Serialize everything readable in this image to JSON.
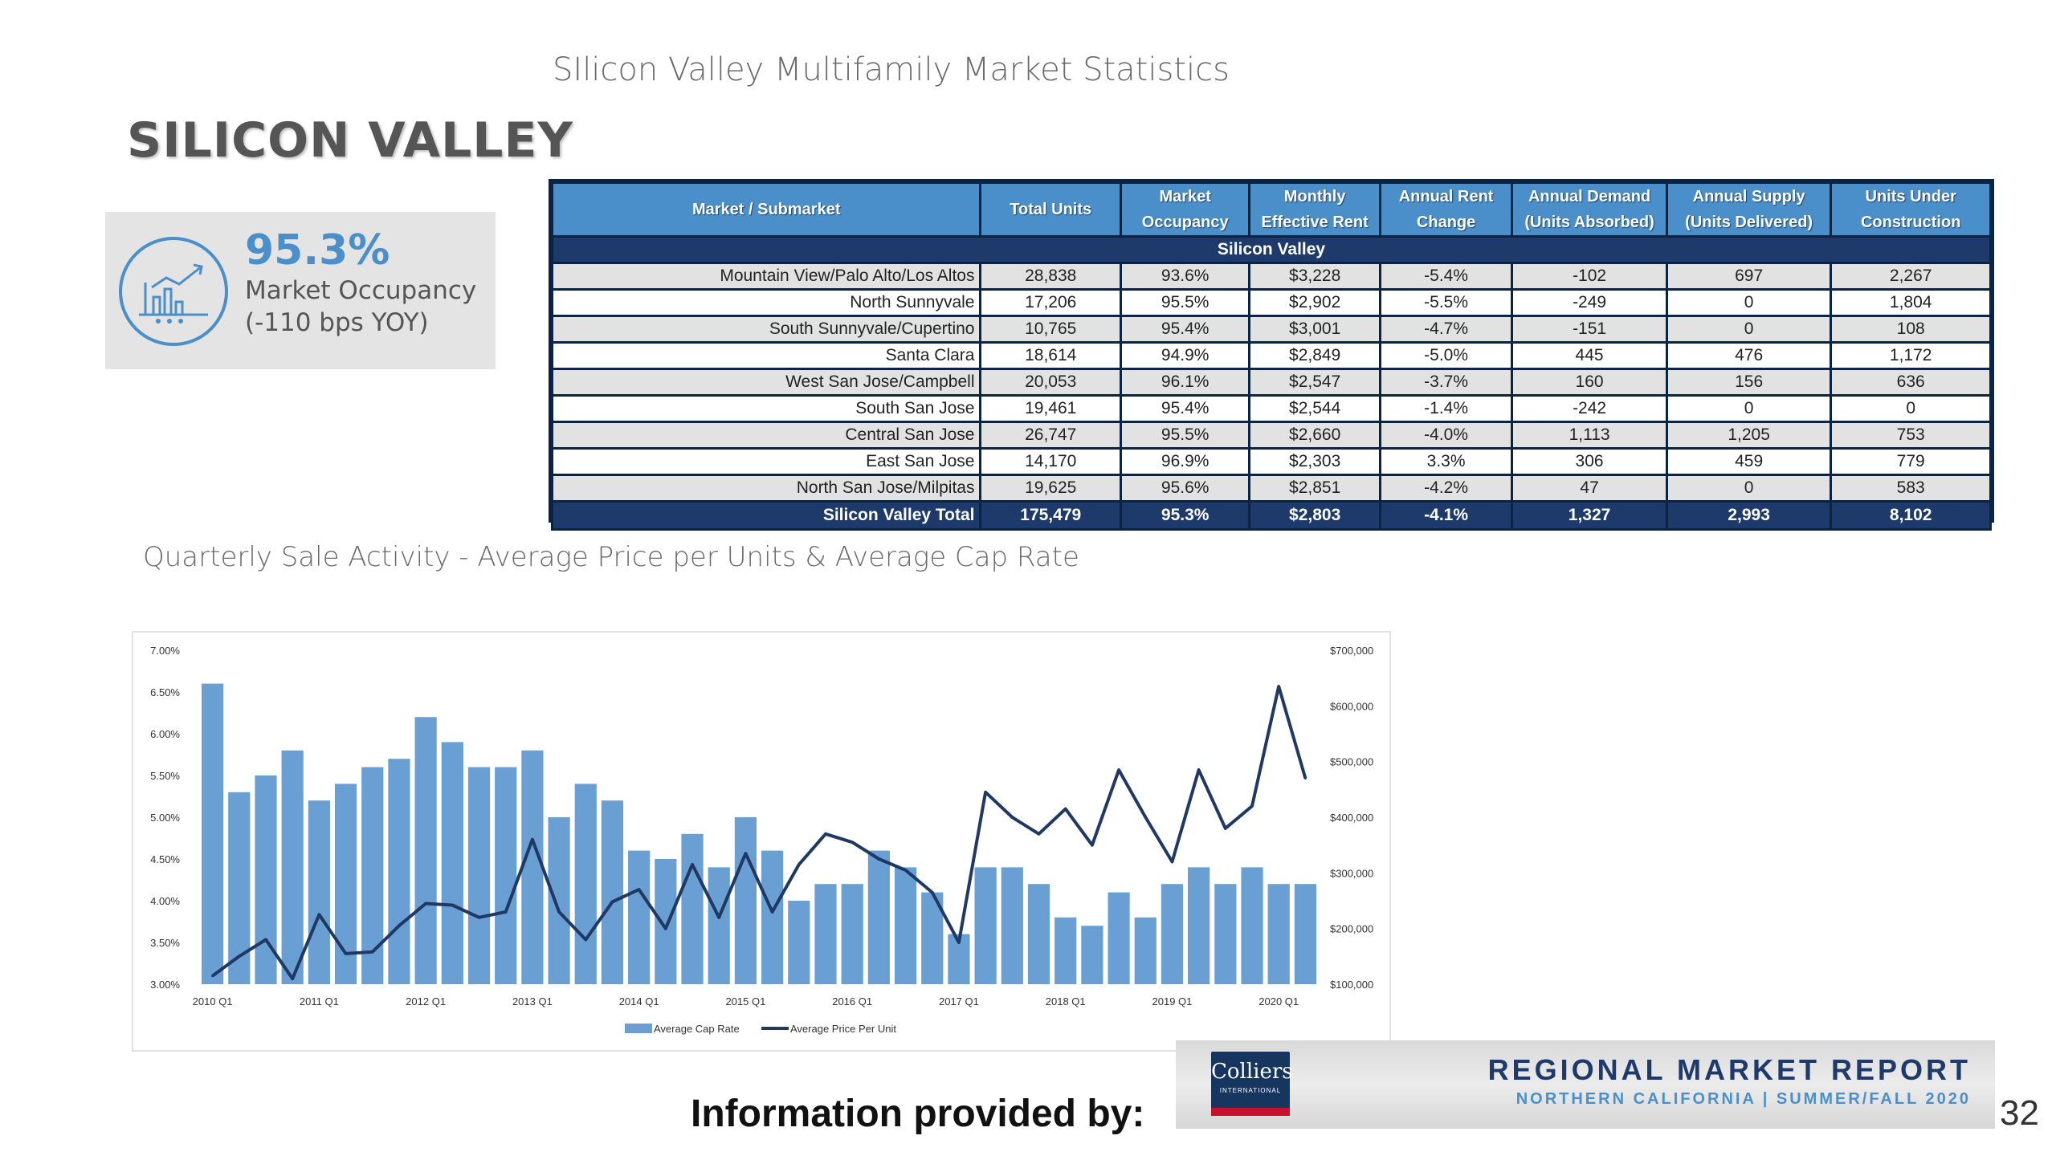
{
  "headings": {
    "stats_title": "SIlicon Valley Multifamily Market Statistics",
    "region": "SILICON VALLEY",
    "chart_title": "Quarterly Sale Activity - Average Price per Units & Average Cap Rate"
  },
  "kpi": {
    "value": "95.3%",
    "label": "Market Occupancy",
    "sub": "(-110 bps YOY)",
    "icon": "chart-analytics-icon"
  },
  "table": {
    "columns": [
      [
        "Market / Submarket"
      ],
      [
        "Total Units"
      ],
      [
        "Market",
        "Occupancy"
      ],
      [
        "Monthly",
        "Effective Rent"
      ],
      [
        "Annual Rent",
        "Change"
      ],
      [
        "Annual Demand",
        "(Units Absorbed)"
      ],
      [
        "Annual Supply",
        "(Units Delivered)"
      ],
      [
        "Units Under",
        "Construction"
      ]
    ],
    "region": "Silicon Valley",
    "rows": [
      [
        "Mountain View/Palo Alto/Los Altos",
        "28,838",
        "93.6%",
        "$3,228",
        "-5.4%",
        "-102",
        "697",
        "2,267"
      ],
      [
        "North Sunnyvale",
        "17,206",
        "95.5%",
        "$2,902",
        "-5.5%",
        "-249",
        "0",
        "1,804"
      ],
      [
        "South Sunnyvale/Cupertino",
        "10,765",
        "95.4%",
        "$3,001",
        "-4.7%",
        "-151",
        "0",
        "108"
      ],
      [
        "Santa Clara",
        "18,614",
        "94.9%",
        "$2,849",
        "-5.0%",
        "445",
        "476",
        "1,172"
      ],
      [
        "West San Jose/Campbell",
        "20,053",
        "96.1%",
        "$2,547",
        "-3.7%",
        "160",
        "156",
        "636"
      ],
      [
        "South San Jose",
        "19,461",
        "95.4%",
        "$2,544",
        "-1.4%",
        "-242",
        "0",
        "0"
      ],
      [
        "Central San Jose",
        "26,747",
        "95.5%",
        "$2,660",
        "-4.0%",
        "1,113",
        "1,205",
        "753"
      ],
      [
        "East San Jose",
        "14,170",
        "96.9%",
        "$2,303",
        "3.3%",
        "306",
        "459",
        "779"
      ],
      [
        "North San Jose/Milpitas",
        "19,625",
        "95.6%",
        "$2,851",
        "-4.2%",
        "47",
        "0",
        "583"
      ]
    ],
    "total": [
      "Silicon Valley Total",
      "175,479",
      "95.3%",
      "$2,803",
      "-4.1%",
      "1,327",
      "2,993",
      "8,102"
    ]
  },
  "chart_data": {
    "type": "bar",
    "title": "",
    "categories": [
      "2010 Q1",
      "2010 Q2",
      "2010 Q3",
      "2010 Q4",
      "2011 Q1",
      "2011 Q2",
      "2011 Q3",
      "2011 Q4",
      "2012 Q1",
      "2012 Q2",
      "2012 Q3",
      "2012 Q4",
      "2013 Q1",
      "2013 Q2",
      "2013 Q3",
      "2013 Q4",
      "2014 Q1",
      "2014 Q2",
      "2014 Q3",
      "2014 Q4",
      "2015 Q1",
      "2015 Q2",
      "2015 Q3",
      "2015 Q4",
      "2016 Q1",
      "2016 Q2",
      "2016 Q3",
      "2016 Q4",
      "2017 Q1",
      "2017 Q2",
      "2017 Q3",
      "2017 Q4",
      "2018 Q1",
      "2018 Q2",
      "2018 Q3",
      "2018 Q4",
      "2019 Q1",
      "2019 Q2",
      "2019 Q3",
      "2019 Q4",
      "2020 Q1",
      "2020 Q2"
    ],
    "x_tick_labels": [
      "2010 Q1",
      "2011 Q1",
      "2012 Q1",
      "2013 Q1",
      "2014 Q1",
      "2015 Q1",
      "2016 Q1",
      "2017 Q1",
      "2018 Q1",
      "2019 Q1",
      "2020 Q1"
    ],
    "series": [
      {
        "name": "Average Cap Rate",
        "type": "bar",
        "axis": "left",
        "color": "#6a9fd4",
        "values": [
          6.6,
          5.3,
          5.5,
          5.8,
          5.2,
          5.4,
          5.6,
          5.7,
          6.2,
          5.9,
          5.6,
          5.6,
          5.8,
          5.0,
          5.4,
          5.2,
          4.6,
          4.5,
          4.8,
          4.4,
          5.0,
          4.6,
          4.0,
          4.2,
          4.2,
          4.6,
          4.4,
          4.1,
          3.6,
          4.4,
          4.4,
          4.2,
          3.8,
          3.7,
          4.1,
          3.8,
          4.2,
          4.4,
          4.2,
          4.4,
          4.2,
          4.2
        ]
      },
      {
        "name": "Average Price Per Unit",
        "type": "line",
        "axis": "right",
        "color": "#1f3864",
        "values": [
          115000,
          150000,
          180000,
          110000,
          225000,
          155000,
          158000,
          205000,
          245000,
          242000,
          220000,
          230000,
          360000,
          230000,
          180000,
          248000,
          270000,
          200000,
          315000,
          220000,
          335000,
          230000,
          315000,
          370000,
          355000,
          325000,
          305000,
          265000,
          175000,
          445000,
          400000,
          370000,
          415000,
          350000,
          485000,
          400000,
          320000,
          485000,
          380000,
          420000,
          635000,
          470000
        ]
      }
    ],
    "y_left": {
      "min": 3.0,
      "max": 7.0,
      "ticks": [
        "3.00%",
        "3.50%",
        "4.00%",
        "4.50%",
        "5.00%",
        "5.50%",
        "6.00%",
        "6.50%",
        "7.00%"
      ]
    },
    "y_right": {
      "min": 100000,
      "max": 700000,
      "ticks": [
        "$100,000",
        "$200,000",
        "$300,000",
        "$400,000",
        "$500,000",
        "$600,000",
        "$700,000"
      ]
    },
    "legend_position": "bottom-center",
    "grid": false
  },
  "footer": {
    "provided_by": "Information provided by:",
    "logo_name": "Colliers",
    "logo_sub": "INTERNATIONAL",
    "report_title": "REGIONAL MARKET REPORT",
    "report_sub": "NORTHERN CALIFORNIA | SUMMER/FALL 2020",
    "page_number": "32"
  }
}
